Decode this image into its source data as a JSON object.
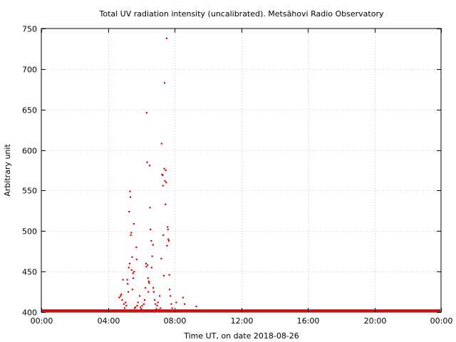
{
  "chart_data": {
    "type": "scatter",
    "title": "Total UV radiation intensity (uncalibrated). Metsähovi Radio Observatory",
    "xlabel": "Time UT, on date 2018-08-26",
    "ylabel": "Arbitrary unit",
    "xlim": [
      0,
      24
    ],
    "ylim": [
      400,
      750
    ],
    "x_ticks": [
      {
        "value": 0,
        "label": "00:00"
      },
      {
        "value": 4,
        "label": "04:00"
      },
      {
        "value": 8,
        "label": "08:00"
      },
      {
        "value": 12,
        "label": "12:00"
      },
      {
        "value": 16,
        "label": "16:00"
      },
      {
        "value": 20,
        "label": "20:00"
      },
      {
        "value": 24,
        "label": "00:00"
      }
    ],
    "y_ticks": [
      {
        "value": 400,
        "label": "400"
      },
      {
        "value": 450,
        "label": "450"
      },
      {
        "value": 500,
        "label": "500"
      },
      {
        "value": 550,
        "label": "550"
      },
      {
        "value": 600,
        "label": "600"
      },
      {
        "value": 650,
        "label": "650"
      },
      {
        "value": 700,
        "label": "700"
      },
      {
        "value": 750,
        "label": "750"
      }
    ],
    "grid": true,
    "marker_color": "#e00000",
    "baseline": {
      "value": 402,
      "x_range": [
        0,
        24
      ]
    },
    "points": [
      [
        4.67,
        418
      ],
      [
        4.75,
        420
      ],
      [
        4.8,
        422
      ],
      [
        4.85,
        415
      ],
      [
        4.9,
        440
      ],
      [
        4.95,
        410
      ],
      [
        5.0,
        405
      ],
      [
        5.05,
        412
      ],
      [
        5.1,
        408
      ],
      [
        5.15,
        440
      ],
      [
        5.18,
        435
      ],
      [
        5.22,
        425
      ],
      [
        5.25,
        455
      ],
      [
        5.27,
        524
      ],
      [
        5.3,
        460
      ],
      [
        5.32,
        549
      ],
      [
        5.35,
        542
      ],
      [
        5.37,
        495
      ],
      [
        5.4,
        498
      ],
      [
        5.42,
        452
      ],
      [
        5.45,
        468
      ],
      [
        5.47,
        428
      ],
      [
        5.5,
        448
      ],
      [
        5.52,
        442
      ],
      [
        5.55,
        509
      ],
      [
        5.57,
        450
      ],
      [
        5.6,
        405
      ],
      [
        5.65,
        406
      ],
      [
        5.7,
        480
      ],
      [
        5.72,
        465
      ],
      [
        5.75,
        408
      ],
      [
        5.8,
        412
      ],
      [
        5.85,
        402
      ],
      [
        5.9,
        420
      ],
      [
        5.95,
        406
      ],
      [
        6.0,
        404
      ],
      [
        6.05,
        408
      ],
      [
        6.1,
        402
      ],
      [
        6.15,
        410
      ],
      [
        6.2,
        415
      ],
      [
        6.25,
        430
      ],
      [
        6.28,
        460
      ],
      [
        6.3,
        456
      ],
      [
        6.32,
        646
      ],
      [
        6.35,
        585
      ],
      [
        6.38,
        458
      ],
      [
        6.4,
        442
      ],
      [
        6.42,
        425
      ],
      [
        6.45,
        438
      ],
      [
        6.47,
        436
      ],
      [
        6.5,
        581
      ],
      [
        6.52,
        529
      ],
      [
        6.55,
        502
      ],
      [
        6.6,
        488
      ],
      [
        6.62,
        455
      ],
      [
        6.65,
        469
      ],
      [
        6.7,
        483
      ],
      [
        6.72,
        430
      ],
      [
        6.75,
        425
      ],
      [
        6.8,
        415
      ],
      [
        6.85,
        410
      ],
      [
        6.9,
        404
      ],
      [
        6.95,
        408
      ],
      [
        7.0,
        412
      ],
      [
        7.05,
        403
      ],
      [
        7.1,
        420
      ],
      [
        7.15,
        405
      ],
      [
        7.2,
        466
      ],
      [
        7.22,
        608
      ],
      [
        7.25,
        570
      ],
      [
        7.28,
        569
      ],
      [
        7.3,
        556
      ],
      [
        7.32,
        495
      ],
      [
        7.35,
        445
      ],
      [
        7.38,
        577
      ],
      [
        7.4,
        683
      ],
      [
        7.42,
        562
      ],
      [
        7.45,
        533
      ],
      [
        7.47,
        575
      ],
      [
        7.5,
        560
      ],
      [
        7.52,
        738
      ],
      [
        7.55,
        482
      ],
      [
        7.58,
        505
      ],
      [
        7.6,
        502
      ],
      [
        7.62,
        490
      ],
      [
        7.65,
        488
      ],
      [
        7.68,
        446
      ],
      [
        7.7,
        428
      ],
      [
        7.75,
        420
      ],
      [
        7.8,
        410
      ],
      [
        7.85,
        405
      ],
      [
        8.1,
        412
      ],
      [
        8.5,
        418
      ],
      [
        8.6,
        410
      ],
      [
        9.3,
        407
      ]
    ]
  }
}
